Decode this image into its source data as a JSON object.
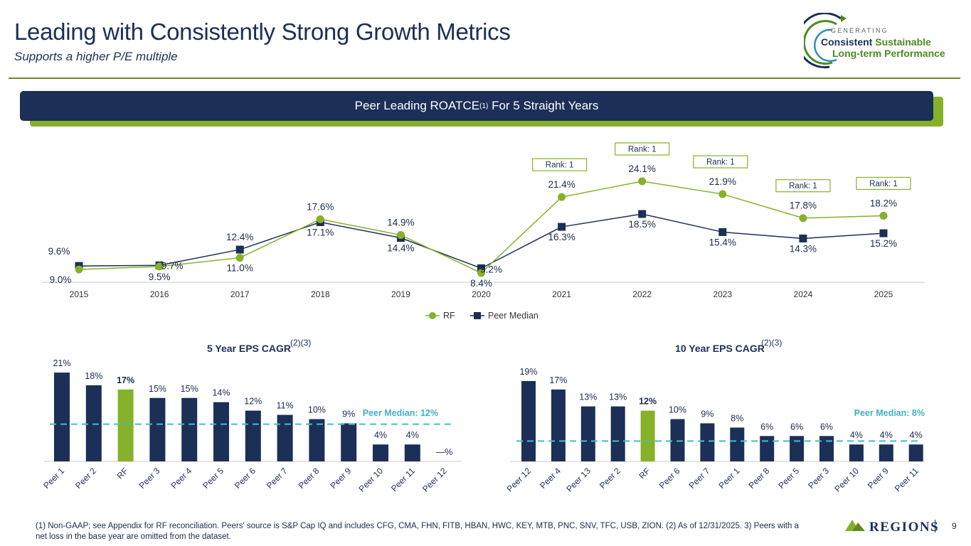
{
  "header": {
    "title": "Leading with Consistently Strong Growth Metrics",
    "subtitle": "Supports a higher P/E multiple"
  },
  "logo": {
    "line0": "GENERATING",
    "line1a": "Consistent",
    "line1b": "Sustainable",
    "line2": "Long-term Performance"
  },
  "banner": {
    "text": "Peer Leading ROATCE",
    "sup": "(1)",
    "text2": " For 5 Straight Years"
  },
  "colors": {
    "navy": "#1b2f57",
    "green": "#86b12a",
    "dashed": "#3fc0c8",
    "peer_median_label": "#3fb1c5"
  },
  "chart_data": [
    {
      "type": "line",
      "title": "Peer Leading ROATCE For 5 Straight Years",
      "categories": [
        "2015",
        "2016",
        "2017",
        "2018",
        "2019",
        "2020",
        "2021",
        "2022",
        "2023",
        "2024",
        "2025"
      ],
      "series": [
        {
          "name": "RF",
          "values": [
            9.0,
            9.5,
            11.0,
            17.6,
            14.9,
            8.4,
            21.4,
            24.1,
            21.9,
            17.8,
            18.2
          ],
          "labels": [
            "9.0%",
            "9.5%",
            "11.0%",
            "17.6%",
            "14.9%",
            "8.4%",
            "21.4%",
            "24.1%",
            "21.9%",
            "17.8%",
            "18.2%"
          ]
        },
        {
          "name": "Peer Median",
          "values": [
            9.6,
            9.7,
            12.4,
            17.1,
            14.4,
            9.2,
            16.3,
            18.5,
            15.4,
            14.3,
            15.2
          ],
          "labels": [
            "9.6%",
            "9.7%",
            "12.4%",
            "17.1%",
            "14.4%",
            "9.2%",
            "16.3%",
            "18.5%",
            "15.4%",
            "14.3%",
            "15.2%"
          ]
        }
      ],
      "ranks": [
        {
          "category": "2021",
          "text": "Rank: 1"
        },
        {
          "category": "2022",
          "text": "Rank: 1"
        },
        {
          "category": "2023",
          "text": "Rank: 1"
        },
        {
          "category": "2024",
          "text": "Rank: 1"
        },
        {
          "category": "2025",
          "text": "Rank: 1"
        }
      ],
      "legend": [
        "RF",
        "Peer Median"
      ],
      "ylim": [
        6,
        26
      ]
    },
    {
      "type": "bar",
      "title": "5 Year EPS CAGR",
      "title_sup": "(2)(3)",
      "categories": [
        "Peer 1",
        "Peer 2",
        "RF",
        "Peer 3",
        "Peer 4",
        "Peer 5",
        "Peer 6",
        "Peer 7",
        "Peer 8",
        "Peer 9",
        "Peer 10",
        "Peer 11",
        "Peer 12"
      ],
      "values": [
        21,
        18,
        17,
        15,
        15,
        14,
        12,
        11,
        10,
        9,
        4,
        4,
        0
      ],
      "labels": [
        "21%",
        "18%",
        "17%",
        "15%",
        "15%",
        "14%",
        "12%",
        "11%",
        "10%",
        "9%",
        "4%",
        "4%",
        "—%"
      ],
      "highlight": "RF",
      "peer_median": 12,
      "peer_median_label": "Peer Median: 12%",
      "ylim": [
        0,
        25
      ]
    },
    {
      "type": "bar",
      "title": "10 Year EPS CAGR",
      "title_sup": "(2)(3)",
      "categories": [
        "Peer 12",
        "Peer 4",
        "Peer 13",
        "Peer 2",
        "RF",
        "Peer 6",
        "Peer 7",
        "Peer 1",
        "Peer 8",
        "Peer 5",
        "Peer 3",
        "Peer 10",
        "Peer 9",
        "Peer 11"
      ],
      "values": [
        19,
        17,
        13,
        13,
        12,
        10,
        9,
        8,
        6,
        6,
        6,
        4,
        4,
        4
      ],
      "labels": [
        "19%",
        "17%",
        "13%",
        "13%",
        "12%",
        "10%",
        "9%",
        "8%",
        "6%",
        "6%",
        "6%",
        "4%",
        "4%",
        "4%"
      ],
      "highlight": "RF",
      "peer_median": 8,
      "peer_median_label": "Peer Median: 8%",
      "ylim": [
        0,
        25
      ]
    }
  ],
  "footnote": "(1) Non-GAAP; see Appendix for RF reconciliation. Peers' source is S&P Cap IQ and includes CFG, CMA, FHN, FITB, HBAN, HWC, KEY, MTB, PNC, SNV, TFC, USB, ZION. (2) As of 12/31/2025. 3) Peers with a net loss in the base year are omitted from the dataset.",
  "footer": {
    "brand": "REGIONS",
    "page": "9"
  }
}
